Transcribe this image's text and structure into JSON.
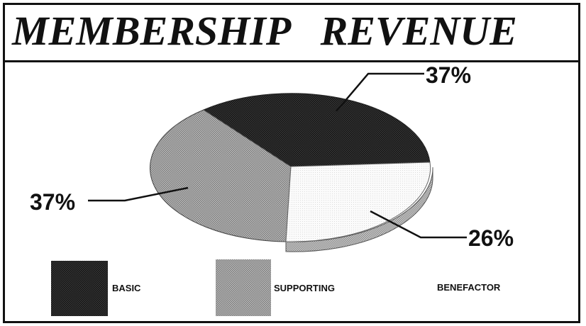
{
  "chart_data": {
    "type": "pie",
    "title": "MEMBERSHIP   REVENUE",
    "slices": [
      {
        "name": "BASIC",
        "value": 37,
        "label": "37%",
        "fill": "dark"
      },
      {
        "name": "SUPPORTING",
        "value": 37,
        "label": "37%",
        "fill": "medium"
      },
      {
        "name": "BENEFACTOR",
        "value": 26,
        "label": "26%",
        "fill": "light"
      }
    ],
    "legend": {
      "position": "bottom",
      "entries": [
        "BASIC",
        "SUPPORTING",
        "BENEFACTOR"
      ]
    },
    "colors": {
      "dark": "#2a2a2a",
      "medium": "#a8a8a8",
      "light": "#f6f6f6"
    }
  }
}
